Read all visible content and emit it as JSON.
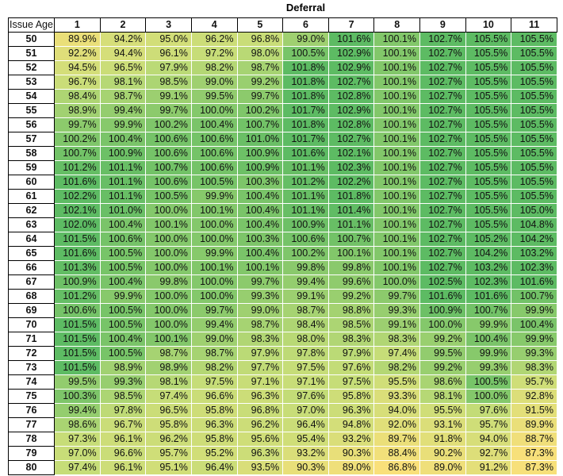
{
  "chart_data": {
    "type": "heatmap",
    "title": "Deferral",
    "row_header_label": "Issue Age",
    "columns": [
      "1",
      "2",
      "3",
      "4",
      "5",
      "6",
      "7",
      "8",
      "9",
      "10",
      "11"
    ],
    "rows": [
      {
        "age": "50",
        "values": [
          "89.9%",
          "94.2%",
          "95.0%",
          "96.2%",
          "96.8%",
          "99.0%",
          "101.6%",
          "100.1%",
          "102.7%",
          "105.5%",
          "105.5%"
        ]
      },
      {
        "age": "51",
        "values": [
          "92.2%",
          "94.4%",
          "96.1%",
          "97.2%",
          "98.0%",
          "100.5%",
          "102.9%",
          "100.1%",
          "102.7%",
          "105.5%",
          "105.5%"
        ]
      },
      {
        "age": "52",
        "values": [
          "94.5%",
          "96.5%",
          "97.9%",
          "98.2%",
          "98.7%",
          "101.8%",
          "102.9%",
          "100.1%",
          "102.7%",
          "105.5%",
          "105.5%"
        ]
      },
      {
        "age": "53",
        "values": [
          "96.7%",
          "98.1%",
          "98.5%",
          "99.0%",
          "99.2%",
          "101.8%",
          "102.7%",
          "100.1%",
          "102.7%",
          "105.5%",
          "105.5%"
        ]
      },
      {
        "age": "54",
        "values": [
          "98.4%",
          "98.7%",
          "99.1%",
          "99.5%",
          "99.7%",
          "101.8%",
          "102.8%",
          "100.1%",
          "102.7%",
          "105.5%",
          "105.5%"
        ]
      },
      {
        "age": "55",
        "values": [
          "98.9%",
          "99.4%",
          "99.7%",
          "100.0%",
          "100.2%",
          "101.7%",
          "102.9%",
          "100.1%",
          "102.7%",
          "105.5%",
          "105.5%"
        ]
      },
      {
        "age": "56",
        "values": [
          "99.7%",
          "99.9%",
          "100.2%",
          "100.4%",
          "100.7%",
          "101.8%",
          "102.8%",
          "100.1%",
          "102.7%",
          "105.5%",
          "105.5%"
        ]
      },
      {
        "age": "57",
        "values": [
          "100.2%",
          "100.4%",
          "100.6%",
          "100.6%",
          "101.0%",
          "101.7%",
          "102.7%",
          "100.1%",
          "102.7%",
          "105.5%",
          "105.5%"
        ]
      },
      {
        "age": "58",
        "values": [
          "100.7%",
          "100.9%",
          "100.6%",
          "100.6%",
          "100.9%",
          "101.6%",
          "102.1%",
          "100.1%",
          "102.7%",
          "105.5%",
          "105.5%"
        ]
      },
      {
        "age": "59",
        "values": [
          "101.2%",
          "101.1%",
          "100.7%",
          "100.6%",
          "100.9%",
          "101.1%",
          "102.3%",
          "100.1%",
          "102.7%",
          "105.5%",
          "105.5%"
        ]
      },
      {
        "age": "60",
        "values": [
          "101.6%",
          "101.1%",
          "100.6%",
          "100.5%",
          "100.3%",
          "101.2%",
          "102.2%",
          "100.1%",
          "102.7%",
          "105.5%",
          "105.5%"
        ]
      },
      {
        "age": "61",
        "values": [
          "102.2%",
          "101.1%",
          "100.5%",
          "99.9%",
          "100.4%",
          "101.1%",
          "101.8%",
          "100.1%",
          "102.7%",
          "105.5%",
          "105.5%"
        ]
      },
      {
        "age": "62",
        "values": [
          "102.1%",
          "101.0%",
          "100.0%",
          "100.1%",
          "100.4%",
          "101.1%",
          "101.4%",
          "100.1%",
          "102.7%",
          "105.5%",
          "105.0%"
        ]
      },
      {
        "age": "63",
        "values": [
          "102.0%",
          "100.4%",
          "100.1%",
          "100.0%",
          "100.4%",
          "100.9%",
          "101.1%",
          "100.1%",
          "102.7%",
          "105.5%",
          "104.8%"
        ]
      },
      {
        "age": "64",
        "values": [
          "101.5%",
          "100.6%",
          "100.0%",
          "100.0%",
          "100.3%",
          "100.6%",
          "100.7%",
          "100.1%",
          "102.7%",
          "105.2%",
          "104.2%"
        ]
      },
      {
        "age": "65",
        "values": [
          "101.6%",
          "100.5%",
          "100.0%",
          "99.9%",
          "100.4%",
          "100.2%",
          "100.1%",
          "100.1%",
          "102.7%",
          "104.2%",
          "103.2%"
        ]
      },
      {
        "age": "66",
        "values": [
          "101.3%",
          "100.5%",
          "100.0%",
          "100.1%",
          "100.1%",
          "99.8%",
          "99.8%",
          "100.1%",
          "102.7%",
          "103.2%",
          "102.3%"
        ]
      },
      {
        "age": "67",
        "values": [
          "100.9%",
          "100.4%",
          "99.8%",
          "100.0%",
          "99.7%",
          "99.4%",
          "99.6%",
          "100.0%",
          "102.5%",
          "102.3%",
          "101.6%"
        ]
      },
      {
        "age": "68",
        "values": [
          "101.2%",
          "99.9%",
          "100.0%",
          "100.0%",
          "99.3%",
          "99.1%",
          "99.2%",
          "99.7%",
          "101.6%",
          "101.6%",
          "100.7%"
        ]
      },
      {
        "age": "69",
        "values": [
          "100.6%",
          "100.5%",
          "100.0%",
          "99.7%",
          "99.0%",
          "98.7%",
          "98.8%",
          "99.3%",
          "100.9%",
          "100.7%",
          "99.9%"
        ]
      },
      {
        "age": "70",
        "values": [
          "101.5%",
          "100.5%",
          "100.0%",
          "99.4%",
          "98.7%",
          "98.4%",
          "98.5%",
          "99.1%",
          "100.0%",
          "99.9%",
          "100.4%"
        ]
      },
      {
        "age": "71",
        "values": [
          "101.5%",
          "100.4%",
          "100.1%",
          "99.0%",
          "98.3%",
          "98.0%",
          "98.3%",
          "98.3%",
          "99.2%",
          "100.4%",
          "99.9%"
        ]
      },
      {
        "age": "72",
        "values": [
          "101.5%",
          "100.5%",
          "98.7%",
          "98.7%",
          "97.9%",
          "97.8%",
          "97.9%",
          "97.4%",
          "99.5%",
          "99.9%",
          "99.3%"
        ]
      },
      {
        "age": "73",
        "values": [
          "101.5%",
          "98.9%",
          "98.9%",
          "98.2%",
          "97.7%",
          "97.5%",
          "97.6%",
          "98.2%",
          "99.2%",
          "99.3%",
          "98.3%"
        ]
      },
      {
        "age": "74",
        "values": [
          "99.5%",
          "99.3%",
          "98.1%",
          "97.5%",
          "97.1%",
          "97.1%",
          "97.5%",
          "95.5%",
          "98.6%",
          "100.5%",
          "95.7%"
        ]
      },
      {
        "age": "75",
        "values": [
          "100.3%",
          "98.5%",
          "97.4%",
          "96.6%",
          "96.3%",
          "97.6%",
          "95.8%",
          "93.3%",
          "98.1%",
          "100.0%",
          "92.8%"
        ]
      },
      {
        "age": "76",
        "values": [
          "99.4%",
          "97.8%",
          "96.5%",
          "95.8%",
          "96.8%",
          "97.0%",
          "96.3%",
          "94.0%",
          "95.5%",
          "97.6%",
          "91.5%"
        ]
      },
      {
        "age": "77",
        "values": [
          "98.6%",
          "96.7%",
          "95.8%",
          "96.3%",
          "96.2%",
          "96.4%",
          "94.8%",
          "92.0%",
          "93.1%",
          "95.7%",
          "89.9%"
        ]
      },
      {
        "age": "78",
        "values": [
          "97.3%",
          "96.1%",
          "96.2%",
          "95.8%",
          "95.6%",
          "95.4%",
          "93.2%",
          "89.7%",
          "91.8%",
          "94.0%",
          "88.7%"
        ]
      },
      {
        "age": "79",
        "values": [
          "97.0%",
          "96.6%",
          "95.7%",
          "95.2%",
          "96.3%",
          "93.2%",
          "90.3%",
          "88.4%",
          "90.2%",
          "92.7%",
          "87.3%"
        ]
      },
      {
        "age": "80",
        "values": [
          "97.4%",
          "96.1%",
          "95.1%",
          "96.4%",
          "93.5%",
          "90.3%",
          "89.0%",
          "86.8%",
          "89.0%",
          "91.2%",
          "87.3%"
        ]
      }
    ],
    "color_scale": {
      "low": "#f9e07a",
      "mid": "#c6dd78",
      "high": "#5dbb63",
      "min": 86.8,
      "max": 105.5
    }
  }
}
